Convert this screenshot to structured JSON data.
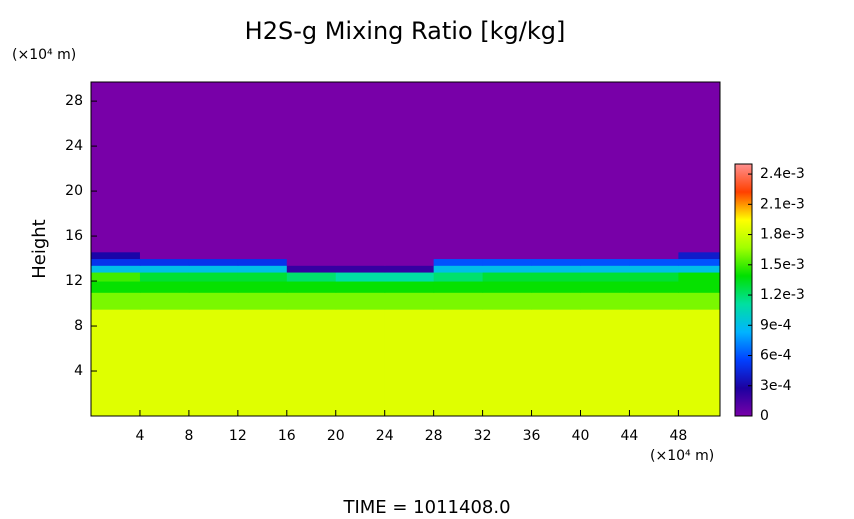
{
  "chart_data": {
    "type": "heatmap",
    "title": "H2S-g Mixing Ratio [kg/kg]",
    "y_label": "Height",
    "y_unit": "(×10⁴ m)",
    "x_unit": "(×10⁴ m)",
    "footer": "TIME = 1011408.0",
    "xlim": [
      0,
      51.4
    ],
    "ylim": [
      0,
      29.7
    ],
    "xticks": [
      4,
      8,
      12,
      16,
      20,
      24,
      28,
      32,
      36,
      40,
      44,
      48
    ],
    "yticks": [
      4,
      8,
      12,
      16,
      20,
      24,
      28
    ],
    "zlim": [
      0,
      0.0025
    ],
    "zticks": [
      0,
      {
        "value": 0.0003,
        "label": "3e-4"
      },
      {
        "value": 0.0006,
        "label": "6e-4"
      },
      {
        "value": 0.0009,
        "label": "9e-4"
      },
      {
        "value": 0.0012,
        "label": "1.2e-3"
      },
      {
        "value": 0.0015,
        "label": "1.5e-3"
      },
      {
        "value": 0.0018,
        "label": "1.8e-3"
      },
      {
        "value": 0.0021,
        "label": "2.1e-3"
      },
      {
        "value": 0.0024,
        "label": "2.4e-3"
      }
    ],
    "colormap": [
      "#7800a8",
      "#1c00a0",
      "#0040ff",
      "#00b4ff",
      "#00e0a0",
      "#00e000",
      "#a0ff00",
      "#ffff00",
      "#ff4000",
      "#ff9090"
    ],
    "xbins": [
      0,
      4,
      8,
      12,
      16,
      20,
      24,
      28,
      32,
      36,
      40,
      44,
      48,
      51.4
    ],
    "ybins": [
      0,
      9.5,
      11,
      12,
      12.8,
      13.4,
      14,
      14.6,
      29.7
    ],
    "z": [
      [
        0.00185,
        0.00185,
        0.00185,
        0.00185,
        0.00185,
        0.00185,
        0.00185,
        0.00185,
        0.00185,
        0.00185,
        0.00185,
        0.00185,
        0.00185
      ],
      [
        0.0016,
        0.0016,
        0.0016,
        0.0016,
        0.0016,
        0.0016,
        0.0016,
        0.0016,
        0.0016,
        0.0016,
        0.0016,
        0.0016,
        0.0016
      ],
      [
        0.0014,
        0.0014,
        0.0014,
        0.0014,
        0.0014,
        0.0014,
        0.0014,
        0.0014,
        0.0014,
        0.0014,
        0.0014,
        0.0014,
        0.0014
      ],
      [
        0.0015,
        0.0013,
        0.0013,
        0.0013,
        0.0012,
        0.0011,
        0.0011,
        0.0012,
        0.0013,
        0.0013,
        0.0013,
        0.0013,
        0.0014
      ],
      [
        0.0009,
        0.0009,
        0.0009,
        0.0009,
        0.0002,
        0.0002,
        0.0002,
        0.0009,
        0.0009,
        0.0009,
        0.0009,
        0.0009,
        0.0009
      ],
      [
        0.0005,
        0.0005,
        0.0005,
        0.0005,
        0,
        0,
        0,
        0.0006,
        0.0006,
        0.0006,
        0.0006,
        0.0006,
        0.0006
      ],
      [
        0.0003,
        0,
        0,
        0,
        0,
        0,
        0,
        0,
        0,
        0,
        0,
        0,
        0.0004
      ],
      [
        0,
        0,
        0,
        0,
        0,
        0,
        0,
        0,
        0,
        0,
        0,
        0,
        0
      ]
    ]
  }
}
